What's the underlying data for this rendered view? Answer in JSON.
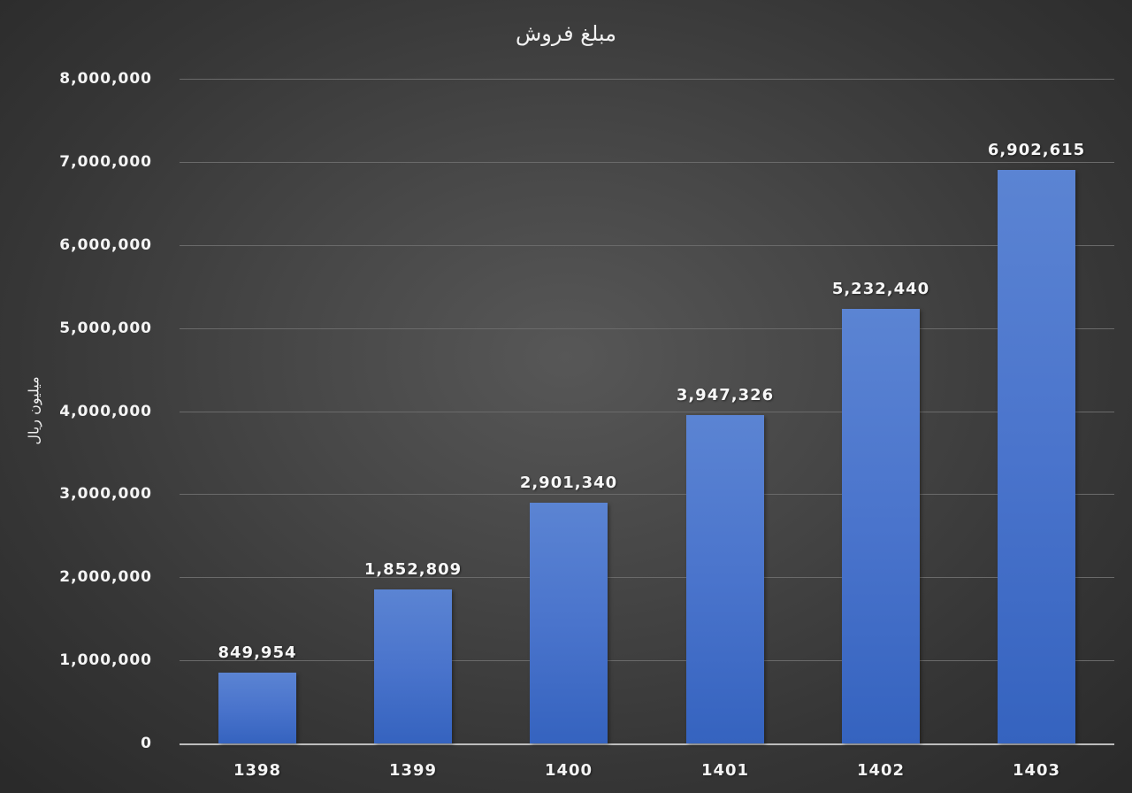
{
  "chart_data": {
    "type": "bar",
    "title": "مبلغ فروش",
    "xlabel": "",
    "ylabel": "میلیون ریال",
    "categories": [
      "1398",
      "1399",
      "1400",
      "1401",
      "1402",
      "1403"
    ],
    "values": [
      849954,
      1852809,
      2901340,
      3947326,
      5232440,
      6902615
    ],
    "value_labels": [
      "849,954",
      "1,852,809",
      "2,901,340",
      "3,947,326",
      "5,232,440",
      "6,902,615"
    ],
    "ylim": [
      0,
      8000000
    ],
    "yticks": [
      0,
      1000000,
      2000000,
      3000000,
      4000000,
      5000000,
      6000000,
      7000000,
      8000000
    ],
    "ytick_labels": [
      "0",
      "1,000,000",
      "2,000,000",
      "3,000,000",
      "4,000,000",
      "5,000,000",
      "6,000,000",
      "7,000,000",
      "8,000,000"
    ],
    "grid": true,
    "legend": "none",
    "colors": {
      "bar_top": "#5b84d3",
      "bar_bottom": "#3563bf",
      "background": "#474747",
      "gridline": "#6a6a6a"
    }
  }
}
